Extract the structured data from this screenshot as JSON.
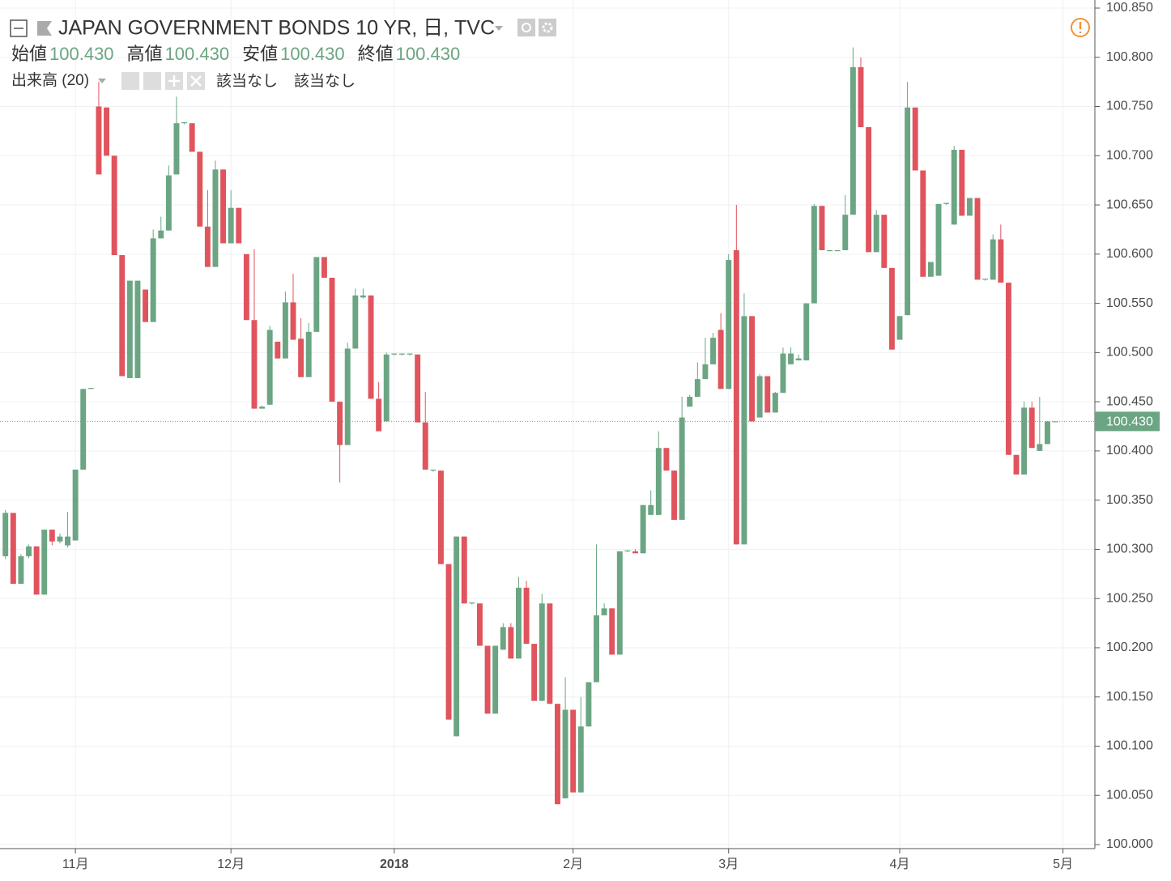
{
  "chart_data": {
    "type": "candlestick",
    "title": "JAPAN GOVERNMENT BONDS 10 YR, 日, TVC",
    "legend_values": [
      {
        "name": "始値",
        "value": {
          "value": 100.43,
          "label": "100.430"
        }
      },
      {
        "name": "高値",
        "value": {
          "value": 100.43,
          "label": "100.430"
        }
      },
      {
        "name": "安値",
        "value": {
          "value": 100.43,
          "label": "100.430"
        }
      },
      {
        "name": "終値",
        "value": {
          "value": 100.43,
          "label": "100.430"
        }
      }
    ],
    "volume_study": {
      "name": "出来高 (20)",
      "values": [
        "該当なし",
        "該当なし"
      ]
    },
    "up_color": "#6ba583",
    "down_color": "#e0545e",
    "open": [
      100.293,
      100.337,
      100.265,
      100.293,
      100.303,
      100.254,
      100.32,
      100.308,
      100.304,
      100.309,
      100.381,
      100.463,
      100.75,
      100.749,
      100.7,
      100.599,
      100.474,
      100.474,
      100.564,
      100.531,
      100.616,
      100.624,
      100.681,
      100.733,
      100.733,
      100.704,
      100.628,
      100.587,
      100.686,
      100.611,
      100.647,
      100.6,
      100.533,
      100.443,
      100.447,
      100.511,
      100.494,
      100.551,
      100.514,
      100.475,
      100.521,
      100.597,
      100.576,
      100.45,
      100.406,
      100.504,
      100.556,
      100.558,
      100.453,
      100.43,
      100.498,
      100.498,
      100.498,
      100.498,
      100.429,
      100.38,
      100.38,
      100.285,
      100.11,
      100.313,
      100.245,
      100.245,
      100.202,
      100.133,
      100.198,
      100.221,
      100.189,
      100.261,
      100.204,
      100.146,
      100.245,
      100.143,
      100.047,
      100.137,
      100.053,
      100.12,
      100.165,
      100.233,
      100.24,
      100.193,
      100.298,
      100.298,
      100.296,
      100.335,
      100.335,
      100.403,
      100.38,
      100.33,
      100.445,
      100.455,
      100.473,
      100.488,
      100.523,
      100.463,
      100.604,
      100.305,
      100.537,
      100.434,
      100.476,
      100.439,
      100.459,
      100.488,
      100.492,
      100.492,
      100.55,
      100.649,
      100.603,
      100.603,
      100.604,
      100.64,
      100.79,
      100.729,
      100.602,
      100.64,
      100.586,
      100.513,
      100.538,
      100.749,
      100.685,
      100.577,
      100.578,
      100.651,
      100.63,
      100.706,
      100.639,
      100.657,
      100.574,
      100.574,
      100.615,
      100.571,
      100.396,
      100.376,
      100.444,
      100.4,
      100.407,
      100.43
    ],
    "high": [
      100.34,
      100.337,
      100.295,
      100.305,
      100.303,
      100.32,
      100.32,
      100.316,
      100.338,
      100.381,
      100.463,
      100.464,
      100.775,
      100.749,
      100.7,
      100.599,
      100.573,
      100.573,
      100.564,
      100.625,
      100.638,
      100.69,
      100.76,
      100.734,
      100.733,
      100.704,
      100.665,
      100.695,
      100.686,
      100.665,
      100.647,
      100.6,
      100.605,
      100.446,
      100.527,
      100.511,
      100.562,
      100.58,
      100.535,
      100.53,
      100.597,
      100.597,
      100.576,
      100.45,
      100.51,
      100.565,
      100.565,
      100.558,
      100.47,
      100.5,
      100.499,
      100.499,
      100.499,
      100.498,
      100.46,
      100.381,
      100.38,
      100.285,
      100.313,
      100.313,
      100.246,
      100.245,
      100.202,
      100.202,
      100.225,
      100.225,
      100.272,
      100.268,
      100.204,
      100.255,
      100.245,
      100.143,
      100.17,
      100.137,
      100.15,
      100.165,
      100.305,
      100.245,
      100.24,
      100.298,
      100.299,
      100.3,
      100.345,
      100.36,
      100.42,
      100.403,
      100.38,
      100.455,
      100.457,
      100.49,
      100.515,
      100.52,
      100.54,
      100.6,
      100.65,
      100.56,
      100.537,
      100.478,
      100.476,
      100.46,
      100.505,
      100.505,
      100.498,
      100.55,
      100.651,
      100.649,
      100.604,
      100.604,
      100.66,
      100.81,
      100.8,
      100.729,
      100.645,
      100.64,
      100.586,
      100.537,
      100.775,
      100.749,
      100.685,
      100.592,
      100.651,
      100.652,
      100.71,
      100.706,
      100.657,
      100.657,
      100.575,
      100.62,
      100.63,
      100.571,
      100.396,
      100.45,
      100.45,
      100.455,
      100.43,
      100.43
    ],
    "low": [
      100.29,
      100.265,
      100.265,
      100.291,
      100.254,
      100.254,
      100.304,
      100.306,
      100.302,
      100.309,
      100.381,
      100.463,
      100.681,
      100.7,
      100.599,
      100.476,
      100.474,
      100.474,
      100.531,
      100.531,
      100.616,
      100.624,
      100.681,
      100.732,
      100.704,
      100.628,
      100.587,
      100.587,
      100.611,
      100.611,
      100.611,
      100.533,
      100.443,
      100.443,
      100.447,
      100.494,
      100.494,
      100.513,
      100.475,
      100.475,
      100.521,
      100.576,
      100.45,
      100.368,
      100.406,
      100.504,
      100.555,
      100.453,
      100.42,
      100.43,
      100.497,
      100.497,
      100.497,
      100.429,
      100.381,
      100.379,
      100.285,
      100.127,
      100.11,
      100.245,
      100.244,
      100.202,
      100.133,
      100.133,
      100.198,
      100.189,
      100.189,
      100.204,
      100.146,
      100.146,
      100.143,
      100.041,
      100.047,
      100.053,
      100.053,
      100.12,
      100.165,
      100.233,
      100.193,
      100.193,
      100.297,
      100.296,
      100.296,
      100.335,
      100.335,
      100.38,
      100.33,
      100.33,
      100.445,
      100.455,
      100.473,
      100.488,
      100.463,
      100.463,
      100.305,
      100.305,
      100.43,
      100.434,
      100.439,
      100.439,
      100.459,
      100.488,
      100.492,
      100.492,
      100.55,
      100.604,
      100.603,
      100.603,
      100.604,
      100.64,
      100.729,
      100.602,
      100.602,
      100.586,
      100.503,
      100.513,
      100.538,
      100.685,
      100.577,
      100.577,
      100.578,
      100.65,
      100.63,
      100.639,
      100.639,
      100.574,
      100.573,
      100.574,
      100.571,
      100.396,
      100.376,
      100.376,
      100.403,
      100.4,
      100.407,
      100.43
    ],
    "close": [
      100.337,
      100.265,
      100.293,
      100.303,
      100.254,
      100.32,
      100.308,
      100.313,
      100.313,
      100.381,
      100.463,
      100.464,
      100.681,
      100.7,
      100.599,
      100.476,
      100.573,
      100.573,
      100.531,
      100.616,
      100.624,
      100.68,
      100.733,
      100.734,
      100.704,
      100.628,
      100.587,
      100.686,
      100.611,
      100.647,
      100.611,
      100.533,
      100.443,
      100.445,
      100.523,
      100.494,
      100.551,
      100.513,
      100.475,
      100.521,
      100.597,
      100.576,
      100.45,
      100.406,
      100.504,
      100.558,
      100.558,
      100.453,
      100.42,
      100.498,
      100.499,
      100.499,
      100.499,
      100.429,
      100.381,
      100.381,
      100.285,
      100.127,
      100.313,
      100.245,
      100.246,
      100.202,
      100.133,
      100.202,
      100.221,
      100.189,
      100.261,
      100.204,
      100.146,
      100.245,
      100.143,
      100.041,
      100.137,
      100.053,
      100.12,
      100.165,
      100.233,
      100.24,
      100.193,
      100.298,
      100.299,
      100.296,
      100.345,
      100.345,
      100.403,
      100.38,
      100.33,
      100.434,
      100.455,
      100.473,
      100.488,
      100.515,
      100.463,
      100.594,
      100.305,
      100.537,
      100.43,
      100.476,
      100.439,
      100.459,
      100.499,
      100.499,
      100.494,
      100.55,
      100.649,
      100.604,
      100.604,
      100.604,
      100.64,
      100.79,
      100.729,
      100.602,
      100.64,
      100.586,
      100.503,
      100.537,
      100.749,
      100.685,
      100.577,
      100.592,
      100.651,
      100.652,
      100.706,
      100.639,
      100.657,
      100.574,
      100.575,
      100.615,
      100.571,
      100.396,
      100.376,
      100.444,
      100.403,
      100.407,
      100.43,
      100.43
    ],
    "xlim": [
      -0.7,
      140.1
    ],
    "xticks": [
      {
        "value": 9,
        "label": "11月"
      },
      {
        "value": 29,
        "label": "12月"
      },
      {
        "value": 50,
        "label": "2018"
      },
      {
        "value": 73,
        "label": "2月"
      },
      {
        "value": 93,
        "label": "3月"
      },
      {
        "value": 115,
        "label": "4月"
      },
      {
        "value": 136,
        "label": "5月"
      }
    ],
    "ylim": [
      100.0,
      100.85
    ],
    "yticks": [
      {
        "value": 100.0,
        "label": "100.000"
      },
      {
        "value": 100.05,
        "label": "100.050"
      },
      {
        "value": 100.1,
        "label": "100.100"
      },
      {
        "value": 100.15,
        "label": "100.150"
      },
      {
        "value": 100.2,
        "label": "100.200"
      },
      {
        "value": 100.25,
        "label": "100.250"
      },
      {
        "value": 100.3,
        "label": "100.300"
      },
      {
        "value": 100.35,
        "label": "100.350"
      },
      {
        "value": 100.4,
        "label": "100.400"
      },
      {
        "value": 100.45,
        "label": "100.450"
      },
      {
        "value": 100.5,
        "label": "100.500"
      },
      {
        "value": 100.55,
        "label": "100.550"
      },
      {
        "value": 100.6,
        "label": "100.600"
      },
      {
        "value": 100.65,
        "label": "100.650"
      },
      {
        "value": 100.7,
        "label": "100.700"
      },
      {
        "value": 100.75,
        "label": "100.750"
      },
      {
        "value": 100.8,
        "label": "100.800"
      },
      {
        "value": 100.85,
        "label": "100.850"
      }
    ],
    "last_price": {
      "value": 100.43,
      "label": "100.430"
    },
    "grid": true
  }
}
